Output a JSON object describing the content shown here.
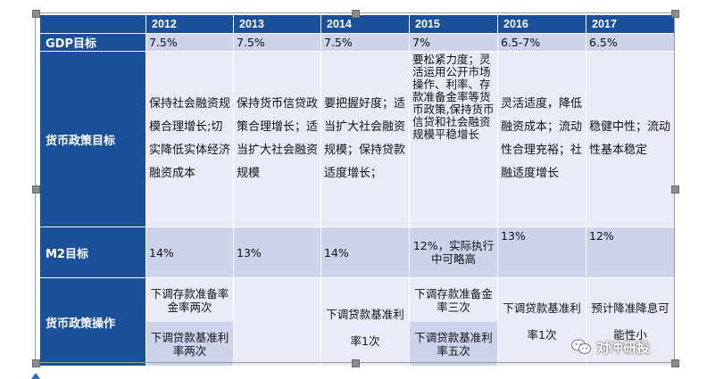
{
  "table": {
    "years": [
      "2012",
      "2013",
      "2014",
      "2015",
      "2016",
      "2017"
    ],
    "gdp": {
      "label": "GDP目标",
      "values": [
        "7.5%",
        "7.5%",
        "7.5%",
        "7%",
        "6.5-7%",
        "6.5%"
      ]
    },
    "policy_goal": {
      "label": "货币政策目标",
      "values": [
        "保持社会融资规模合理增长;切实降低实体经济融资成本",
        "保持货币信贷政策合理增长；适当扩大社会融资规模",
        "要把握好度；适当扩大社会融资规模；保持贷款适度增长；",
        "要松紧力度；灵活运用公开市场操作、利率、存款准备金率等货币政策,保持货币信贷和社会融资规模平稳增长",
        "灵活适度，降低融资成本；流动性合理充裕；社融适度增长",
        "稳健中性；流动性基本稳定"
      ]
    },
    "m2": {
      "label": "M2目标",
      "values": [
        "14%",
        "13%",
        "14%",
        "12%，实际执行中可略高",
        "13%",
        "12%"
      ]
    },
    "operation": {
      "label": "货币政策操作",
      "y2012_top": "下调存款准备率金率两次",
      "y2012_bottom": "下调贷款基准利率两次",
      "y2013": "",
      "y2014": "下调贷款基准利率1次",
      "y2015_top": "下调存款准备金率三次",
      "y2015_bottom": "下调贷款基准利率五次",
      "y2016": "下调贷款基准利率1次",
      "y2017": "预计降准降息可能性小"
    }
  },
  "watermark": {
    "text": "对冲研投"
  },
  "colors": {
    "header_blue": "#1a4f9a",
    "band_dark": "#ccd3ea",
    "band_light": "#e8ebf5"
  }
}
